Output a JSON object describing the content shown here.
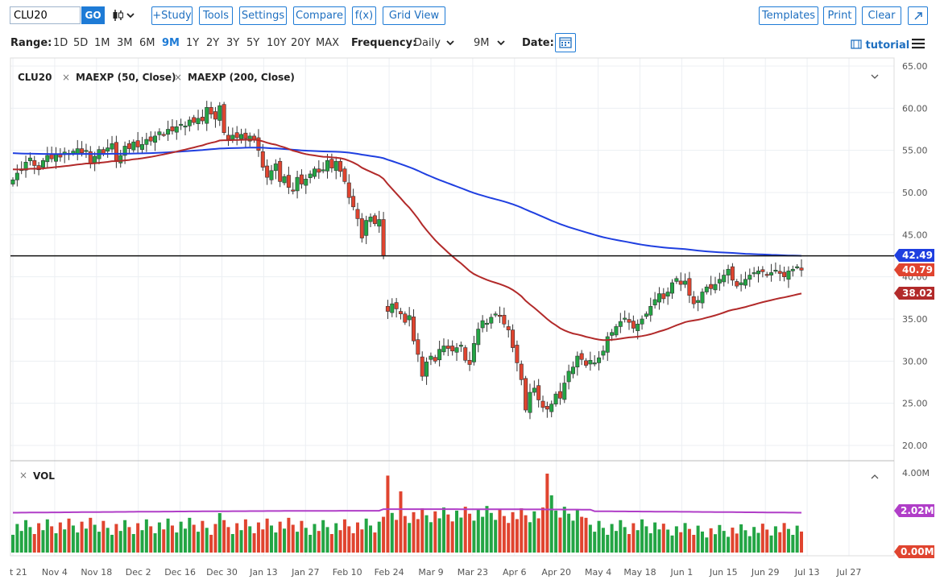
{
  "toolbar": {
    "symbol": "CLU20",
    "go": "GO",
    "buttons": [
      "+Study",
      "Tools",
      "Settings",
      "Compare",
      "f(x)",
      "Grid View"
    ],
    "right_buttons": [
      "Templates",
      "Print",
      "Clear"
    ]
  },
  "range": {
    "label": "Range:",
    "items": [
      "1D",
      "5D",
      "1M",
      "3M",
      "6M",
      "9M",
      "1Y",
      "2Y",
      "3Y",
      "5Y",
      "10Y",
      "20Y",
      "MAX"
    ],
    "active": "9M"
  },
  "frequency": {
    "label": "Frequency:",
    "value": "Daily",
    "period": "9M"
  },
  "date_label": "Date:",
  "tutorial": "tutorial",
  "colors": {
    "up": "#23a544",
    "down": "#e0442f",
    "ma50": "#b22a2a",
    "ma200": "#1f3fe0",
    "vol_avg": "#b03ec8",
    "accent": "#1e7bd6"
  },
  "chart_data": {
    "type": "candlestick",
    "legend": [
      "CLU20",
      "MAEXP (50, Close)",
      "MAEXP (200, Close)"
    ],
    "price_axis": {
      "ticks": [
        "65.00",
        "60.00",
        "55.00",
        "50.00",
        "45.00",
        "40.00",
        "35.00",
        "30.00",
        "25.00",
        "20.00"
      ],
      "min": 20,
      "max": 65
    },
    "x_ticks": [
      "t 21",
      "Nov 4",
      "Nov 18",
      "Dec 2",
      "Dec 16",
      "Dec 30",
      "Jan 13",
      "Jan 27",
      "Feb 10",
      "Feb 24",
      "Mar 9",
      "Mar 23",
      "Apr 6",
      "Apr 20",
      "May 4",
      "May 18",
      "Jun 1",
      "Jun 15",
      "Jun 29",
      "Jul 13",
      "Jul 27"
    ],
    "price_tags": {
      "ma200": "42.49",
      "last": "40.79",
      "ma50": "38.02"
    },
    "horizontal_line": 42.49,
    "closes": [
      51.5,
      52.3,
      52.8,
      53.6,
      54.1,
      53.2,
      52.7,
      53.8,
      54.4,
      54.0,
      54.6,
      54.2,
      54.8,
      54.5,
      54.9,
      55.2,
      54.7,
      55.0,
      53.4,
      54.3,
      55.1,
      54.6,
      55.3,
      55.8,
      53.8,
      54.4,
      55.5,
      55.2,
      56.0,
      55.4,
      55.7,
      56.3,
      56.1,
      56.7,
      57.2,
      56.9,
      57.5,
      57.3,
      57.8,
      58.1,
      57.9,
      58.6,
      58.3,
      58.8,
      58.5,
      60.1,
      59.3,
      58.7,
      60.3,
      57.1,
      56.3,
      56.8,
      56.5,
      56.9,
      56.4,
      56.7,
      56.2,
      55.0,
      53.0,
      51.8,
      52.6,
      53.4,
      51.3,
      51.9,
      50.6,
      50.2,
      51.8,
      51.0,
      51.6,
      52.2,
      52.8,
      52.4,
      52.7,
      53.8,
      52.9,
      53.7,
      52.5,
      51.3,
      49.4,
      48.3,
      46.9,
      44.6,
      46.7,
      47.1,
      46.3,
      46.8,
      42.5,
      35.9,
      36.8,
      36.2,
      35.6,
      34.6,
      35.4,
      32.4,
      30.8,
      28.2,
      29.9,
      30.6,
      30.0,
      31.4,
      31.8,
      31.5,
      31.2,
      31.6,
      31.9,
      30.1,
      29.6,
      32.1,
      33.8,
      34.8,
      34.5,
      35.2,
      35.6,
      35.3,
      34.4,
      33.7,
      31.6,
      29.8,
      27.8,
      24.2,
      26.3,
      26.8,
      25.4,
      24.5,
      24.3,
      24.9,
      26.1,
      25.6,
      27.4,
      28.8,
      29.3,
      30.6,
      30.2,
      29.5,
      30.1,
      29.8,
      30.4,
      31.2,
      32.9,
      33.4,
      34.1,
      34.7,
      35.1,
      34.6,
      33.9,
      34.4,
      35.0,
      35.6,
      36.5,
      37.3,
      38.0,
      37.4,
      38.2,
      39.3,
      39.8,
      39.1,
      39.5,
      37.8,
      36.8,
      37.2,
      38.2,
      38.8,
      38.6,
      39.1,
      39.7,
      40.2,
      40.9,
      39.6,
      38.9,
      39.3,
      39.7,
      40.2,
      40.5,
      40.7,
      40.6,
      40.2,
      40.5,
      40.8,
      40.4,
      40.0,
      40.7,
      40.9,
      41.2,
      40.79
    ],
    "ma50_endpoints": [
      52.8,
      38.02
    ],
    "ma200_endpoints": [
      54.7,
      42.49
    ],
    "volume": {
      "label": "VOL",
      "ticks": [
        "4.00M",
        "2.02M",
        "0.00M"
      ],
      "max": 4.0,
      "avg": 2.02
    }
  }
}
